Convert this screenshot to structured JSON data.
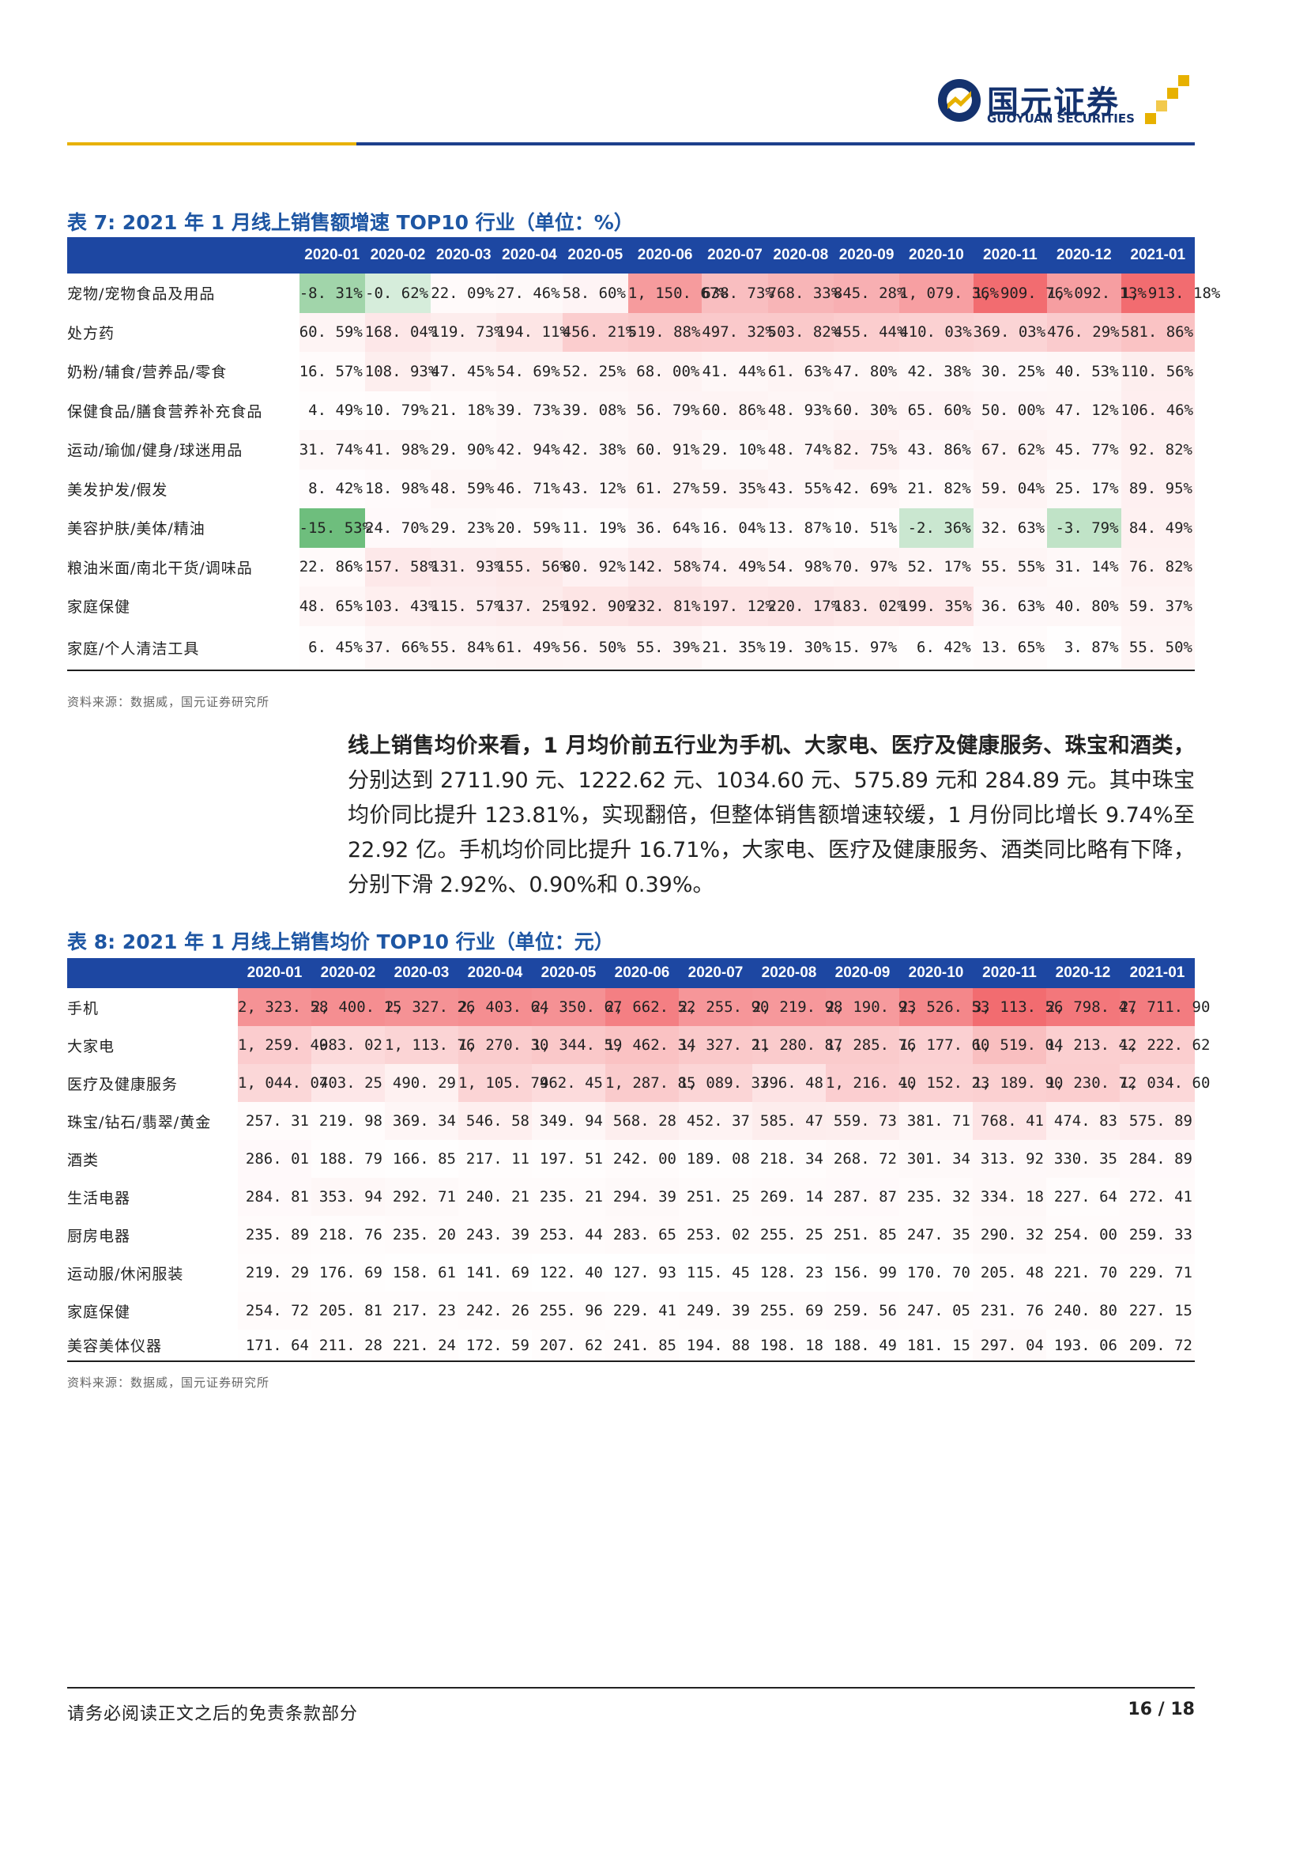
{
  "header": {
    "logo_name": "国元证券",
    "logo_sub": "GUOYUAN SECURITIES",
    "colors": {
      "navy": "#14326e",
      "gold": "#e7b100",
      "blue": "#1d3f8c"
    }
  },
  "table7": {
    "caption": "表 7:  2021 年 1 月线上销售额增速 TOP10 行业（单位：%）",
    "columns": [
      "2020-01",
      "2020-02",
      "2020-03",
      "2020-04",
      "2020-05",
      "2020-06",
      "2020-07",
      "2020-08",
      "2020-09",
      "2020-10",
      "2020-11",
      "2020-12",
      "2021-01"
    ],
    "rows": [
      {
        "label": "宠物/宠物食品及用品",
        "values": [
          -8.31,
          -0.62,
          22.09,
          27.46,
          58.6,
          1150.67,
          638.73,
          768.33,
          845.28,
          1079.36,
          1909.76,
          1092.13,
          1913.18
        ]
      },
      {
        "label": "处方药",
        "values": [
          60.59,
          168.04,
          119.73,
          194.11,
          456.21,
          519.88,
          497.32,
          503.82,
          455.44,
          410.03,
          369.03,
          476.29,
          581.86
        ]
      },
      {
        "label": "奶粉/辅食/营养品/零食",
        "values": [
          16.57,
          108.93,
          47.45,
          54.69,
          52.25,
          68.0,
          41.44,
          61.63,
          47.8,
          42.38,
          30.25,
          40.53,
          110.56
        ]
      },
      {
        "label": "保健食品/膳食营养补充食品",
        "values": [
          4.49,
          10.79,
          21.18,
          39.73,
          39.08,
          56.79,
          60.86,
          48.93,
          60.3,
          65.6,
          50.0,
          47.12,
          106.46
        ]
      },
      {
        "label": "运动/瑜伽/健身/球迷用品",
        "values": [
          31.74,
          41.98,
          29.9,
          42.94,
          42.38,
          60.91,
          29.1,
          48.74,
          82.75,
          43.86,
          67.62,
          45.77,
          92.82
        ]
      },
      {
        "label": "美发护发/假发",
        "values": [
          8.42,
          18.98,
          48.59,
          46.71,
          43.12,
          61.27,
          59.35,
          43.55,
          42.69,
          21.82,
          59.04,
          25.17,
          89.95
        ]
      },
      {
        "label": "美容护肤/美体/精油",
        "values": [
          -15.53,
          24.7,
          29.23,
          20.59,
          11.19,
          36.64,
          16.04,
          13.87,
          10.51,
          -2.36,
          32.63,
          -3.79,
          84.49
        ]
      },
      {
        "label": "粮油米面/南北干货/调味品",
        "values": [
          22.86,
          157.58,
          131.93,
          155.56,
          80.92,
          142.58,
          74.49,
          54.98,
          70.97,
          52.17,
          55.55,
          31.14,
          76.82
        ]
      },
      {
        "label": "家庭保健",
        "values": [
          48.65,
          103.43,
          115.57,
          137.25,
          192.9,
          232.81,
          197.12,
          220.17,
          183.02,
          199.35,
          36.63,
          40.8,
          59.37
        ]
      },
      {
        "label": "家庭/个人清洁工具",
        "values": [
          6.45,
          37.66,
          55.84,
          61.49,
          56.5,
          55.39,
          21.35,
          19.3,
          15.97,
          6.42,
          13.65,
          3.87,
          55.5
        ]
      }
    ],
    "source": "资料来源：数据威，国元证券研究所"
  },
  "paragraph": {
    "bold": "线上销售均价来看，1 月均价前五行业为手机、大家电、医疗及健康服务、珠宝和酒类，",
    "rest": "分别达到 2711.90 元、1222.62 元、1034.60 元、575.89 元和 284.89 元。其中珠宝均价同比提升 123.81%，实现翻倍，但整体销售额增速较缓，1 月份同比增长 9.74%至 22.92 亿。手机均价同比提升 16.71%，大家电、医疗及健康服务、酒类同比略有下降，分别下滑 2.92%、0.90%和 0.39%。"
  },
  "table8": {
    "caption": "表 8:  2021 年 1 月线上销售均价 TOP10 行业（单位：元）",
    "columns": [
      "2020-01",
      "2020-02",
      "2020-03",
      "2020-04",
      "2020-05",
      "2020-06",
      "2020-07",
      "2020-08",
      "2020-09",
      "2020-10",
      "2020-11",
      "2020-12",
      "2021-01"
    ],
    "rows": [
      {
        "label": "手机",
        "values": [
          2323.58,
          2400.15,
          2327.26,
          2403.64,
          2350.67,
          2662.52,
          2255.9,
          2219.98,
          2190.93,
          2526.53,
          3113.56,
          2798.47,
          2711.9
        ]
      },
      {
        "label": "大家电",
        "values": [
          1259.4,
          983.02,
          1113.76,
          1270.3,
          1344.59,
          1462.34,
          1327.21,
          1280.87,
          1285.76,
          1177.6,
          1519.04,
          1213.42,
          1222.62
        ]
      },
      {
        "label": "医疗及健康服务",
        "values": [
          1044.04,
          703.25,
          490.29,
          1105.74,
          962.45,
          1287.85,
          1089.33,
          796.48,
          1216.4,
          1152.23,
          1189.9,
          1230.72,
          1034.6
        ]
      },
      {
        "label": "珠宝/钻石/翡翠/黄金",
        "values": [
          257.31,
          219.98,
          369.34,
          546.58,
          349.94,
          568.28,
          452.37,
          585.47,
          559.73,
          381.71,
          768.41,
          474.83,
          575.89
        ]
      },
      {
        "label": "酒类",
        "values": [
          286.01,
          188.79,
          166.85,
          217.11,
          197.51,
          242.0,
          189.08,
          218.34,
          268.72,
          301.34,
          313.92,
          330.35,
          284.89
        ]
      },
      {
        "label": "生活电器",
        "values": [
          284.81,
          353.94,
          292.71,
          240.21,
          235.21,
          294.39,
          251.25,
          269.14,
          287.87,
          235.32,
          334.18,
          227.64,
          272.41
        ]
      },
      {
        "label": "厨房电器",
        "values": [
          235.89,
          218.76,
          235.2,
          243.39,
          253.44,
          283.65,
          253.02,
          255.25,
          251.85,
          247.35,
          290.32,
          254.0,
          259.33
        ]
      },
      {
        "label": "运动服/休闲服装",
        "values": [
          219.29,
          176.69,
          158.61,
          141.69,
          122.4,
          127.93,
          115.45,
          128.23,
          156.99,
          170.7,
          205.48,
          221.7,
          229.71
        ]
      },
      {
        "label": "家庭保健",
        "values": [
          254.72,
          205.81,
          217.23,
          242.26,
          255.96,
          229.41,
          249.39,
          255.69,
          259.56,
          247.05,
          231.76,
          240.8,
          227.15
        ]
      },
      {
        "label": "美容美体仪器",
        "values": [
          171.64,
          211.28,
          221.24,
          172.59,
          207.62,
          241.85,
          194.88,
          198.18,
          188.49,
          181.15,
          297.04,
          193.06,
          209.72
        ]
      }
    ],
    "source": "资料来源：数据威，国元证券研究所"
  },
  "footer": {
    "disclaimer": "请务必阅读正文之后的免责条款部分",
    "page": "16 / 18"
  }
}
